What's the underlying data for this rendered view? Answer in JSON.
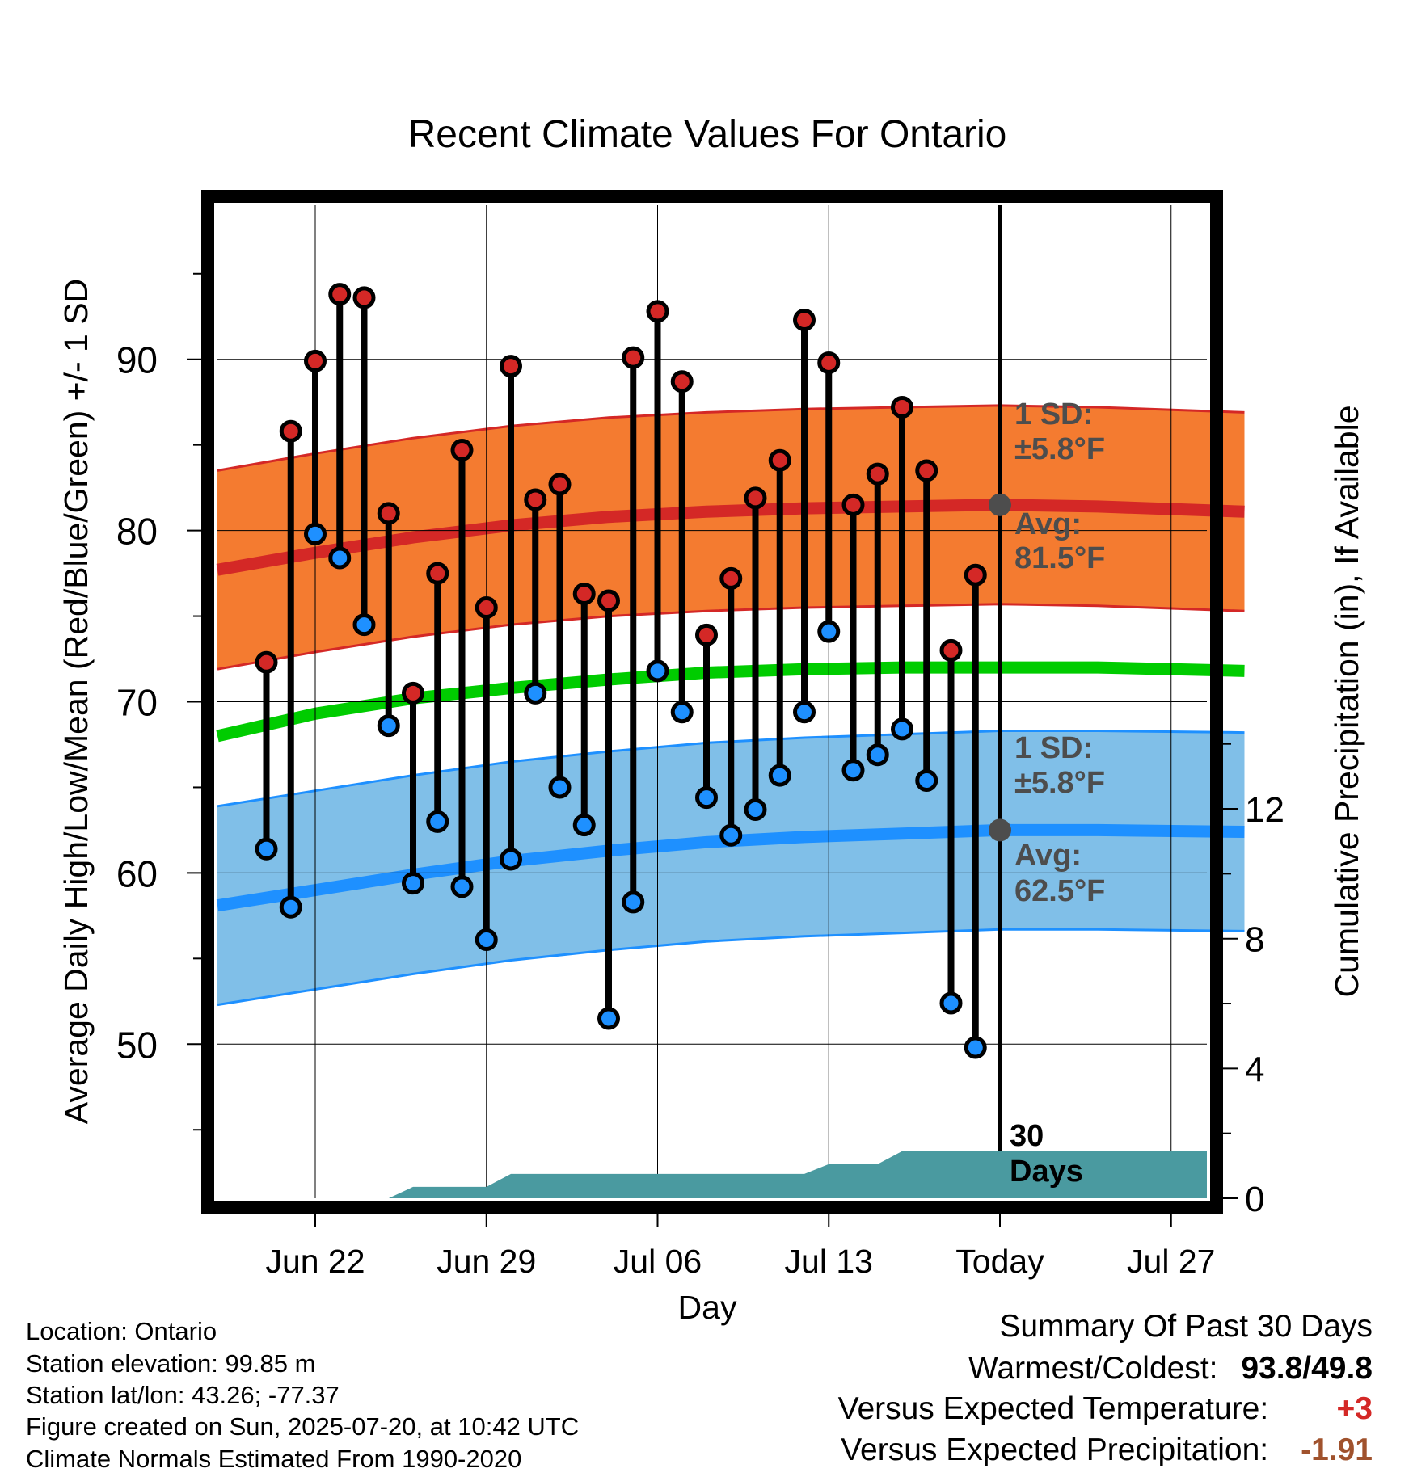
{
  "colors": {
    "high": "#d42826",
    "low": "#1e90ff",
    "mean": "#00cc00",
    "high_band": "#f47b30",
    "low_band": "#80bfe8",
    "precip": "#4a9aa0",
    "avg_label": "#4d4d4d",
    "positive": "#d42826",
    "precip_deficit": "#a0522d"
  },
  "chart_data": {
    "type": "line",
    "title": "Recent Climate Values For Ontario",
    "xlabel": "Day",
    "ylabel": "Average Daily High/Low/Mean (Red/Blue/Green) +/- 1 SD",
    "y2label": "Cumulative Precipitation (in), If Available",
    "ylim": [
      41,
      99
    ],
    "y2lim": [
      0,
      30.6
    ],
    "x_ticks": [
      "Jun 22",
      "Jun 29",
      "Jul 06",
      "Jul 13",
      "Today",
      "Jul 27"
    ],
    "x_tick_dates": [
      "2025-06-22",
      "2025-06-29",
      "2025-07-06",
      "2025-07-13",
      "2025-07-20",
      "2025-07-27"
    ],
    "xlim": [
      "2025-06-18",
      "2025-07-30"
    ],
    "y_ticks": [
      50,
      60,
      70,
      80,
      90
    ],
    "y2_ticks": [
      0,
      4,
      8,
      12
    ],
    "grid": true,
    "today": "2025-07-20",
    "today_label": "30\nDays",
    "daily": {
      "dates": [
        "2025-06-20",
        "2025-06-21",
        "2025-06-22",
        "2025-06-23",
        "2025-06-24",
        "2025-06-25",
        "2025-06-26",
        "2025-06-27",
        "2025-06-28",
        "2025-06-29",
        "2025-06-30",
        "2025-07-01",
        "2025-07-02",
        "2025-07-03",
        "2025-07-04",
        "2025-07-05",
        "2025-07-06",
        "2025-07-07",
        "2025-07-08",
        "2025-07-09",
        "2025-07-10",
        "2025-07-11",
        "2025-07-12",
        "2025-07-13",
        "2025-07-14",
        "2025-07-15",
        "2025-07-16",
        "2025-07-17",
        "2025-07-18",
        "2025-07-19"
      ],
      "high": [
        72.3,
        85.8,
        89.9,
        93.8,
        93.6,
        81.0,
        70.5,
        77.5,
        84.7,
        75.5,
        89.6,
        81.8,
        82.7,
        76.3,
        75.9,
        90.1,
        92.8,
        88.7,
        73.9,
        77.2,
        81.9,
        84.1,
        92.3,
        89.8,
        81.5,
        83.3,
        87.2,
        83.5,
        73.0,
        77.4
      ],
      "low": [
        61.4,
        58.0,
        79.8,
        78.4,
        74.5,
        68.6,
        59.4,
        63.0,
        59.2,
        56.1,
        60.8,
        70.5,
        65.0,
        62.8,
        51.5,
        58.3,
        71.8,
        69.4,
        64.4,
        62.2,
        63.7,
        65.7,
        69.4,
        74.1,
        66.0,
        66.9,
        68.4,
        65.4,
        52.4,
        49.8
      ]
    },
    "normals": {
      "dates": [
        "2025-06-18",
        "2025-06-22",
        "2025-06-26",
        "2025-06-30",
        "2025-07-04",
        "2025-07-08",
        "2025-07-12",
        "2025-07-16",
        "2025-07-20",
        "2025-07-24",
        "2025-07-30"
      ],
      "high_avg": [
        77.7,
        78.7,
        79.6,
        80.3,
        80.8,
        81.1,
        81.3,
        81.4,
        81.5,
        81.4,
        81.1
      ],
      "low_avg": [
        58.1,
        59.0,
        59.9,
        60.7,
        61.3,
        61.8,
        62.1,
        62.3,
        62.5,
        62.5,
        62.4
      ],
      "mean_avg": [
        68.0,
        69.3,
        70.2,
        70.8,
        71.3,
        71.7,
        71.9,
        72.0,
        72.0,
        72.0,
        71.8
      ],
      "sd": 5.8
    },
    "annotations": {
      "high_sd_title": "1 SD:",
      "high_sd_value": "±5.8°F",
      "high_avg_title": "Avg:",
      "high_avg_value": "81.5°F",
      "low_sd_title": "1 SD:",
      "low_sd_value": "±5.8°F",
      "low_avg_title": "Avg:",
      "low_avg_value": "62.5°F"
    },
    "precip_cumulative": {
      "dates": [
        "2025-06-18",
        "2025-06-25",
        "2025-06-26",
        "2025-06-29",
        "2025-06-30",
        "2025-07-12",
        "2025-07-13",
        "2025-07-15",
        "2025-07-16",
        "2025-07-30"
      ],
      "values": [
        0,
        0,
        0.35,
        0.35,
        0.75,
        0.75,
        1.05,
        1.05,
        1.45,
        1.45
      ]
    }
  },
  "footer": {
    "location": "Location: Ontario",
    "elevation": "Station elevation: 99.85 m",
    "latlon": "Station lat/lon: 43.26; -77.37",
    "created": "Figure created on Sun, 2025-07-20, at 10:42 UTC",
    "normals": "Climate Normals Estimated From 1990-2020"
  },
  "summary": {
    "title": "Summary Of Past 30 Days",
    "warm_cold_label": "Warmest/Coldest:",
    "warmest": "93.8",
    "coldest": "49.8",
    "temp_label": "Versus Expected Temperature:",
    "temp_value": "+3",
    "precip_label": "Versus Expected Precipitation:",
    "precip_value": "-1.91"
  }
}
